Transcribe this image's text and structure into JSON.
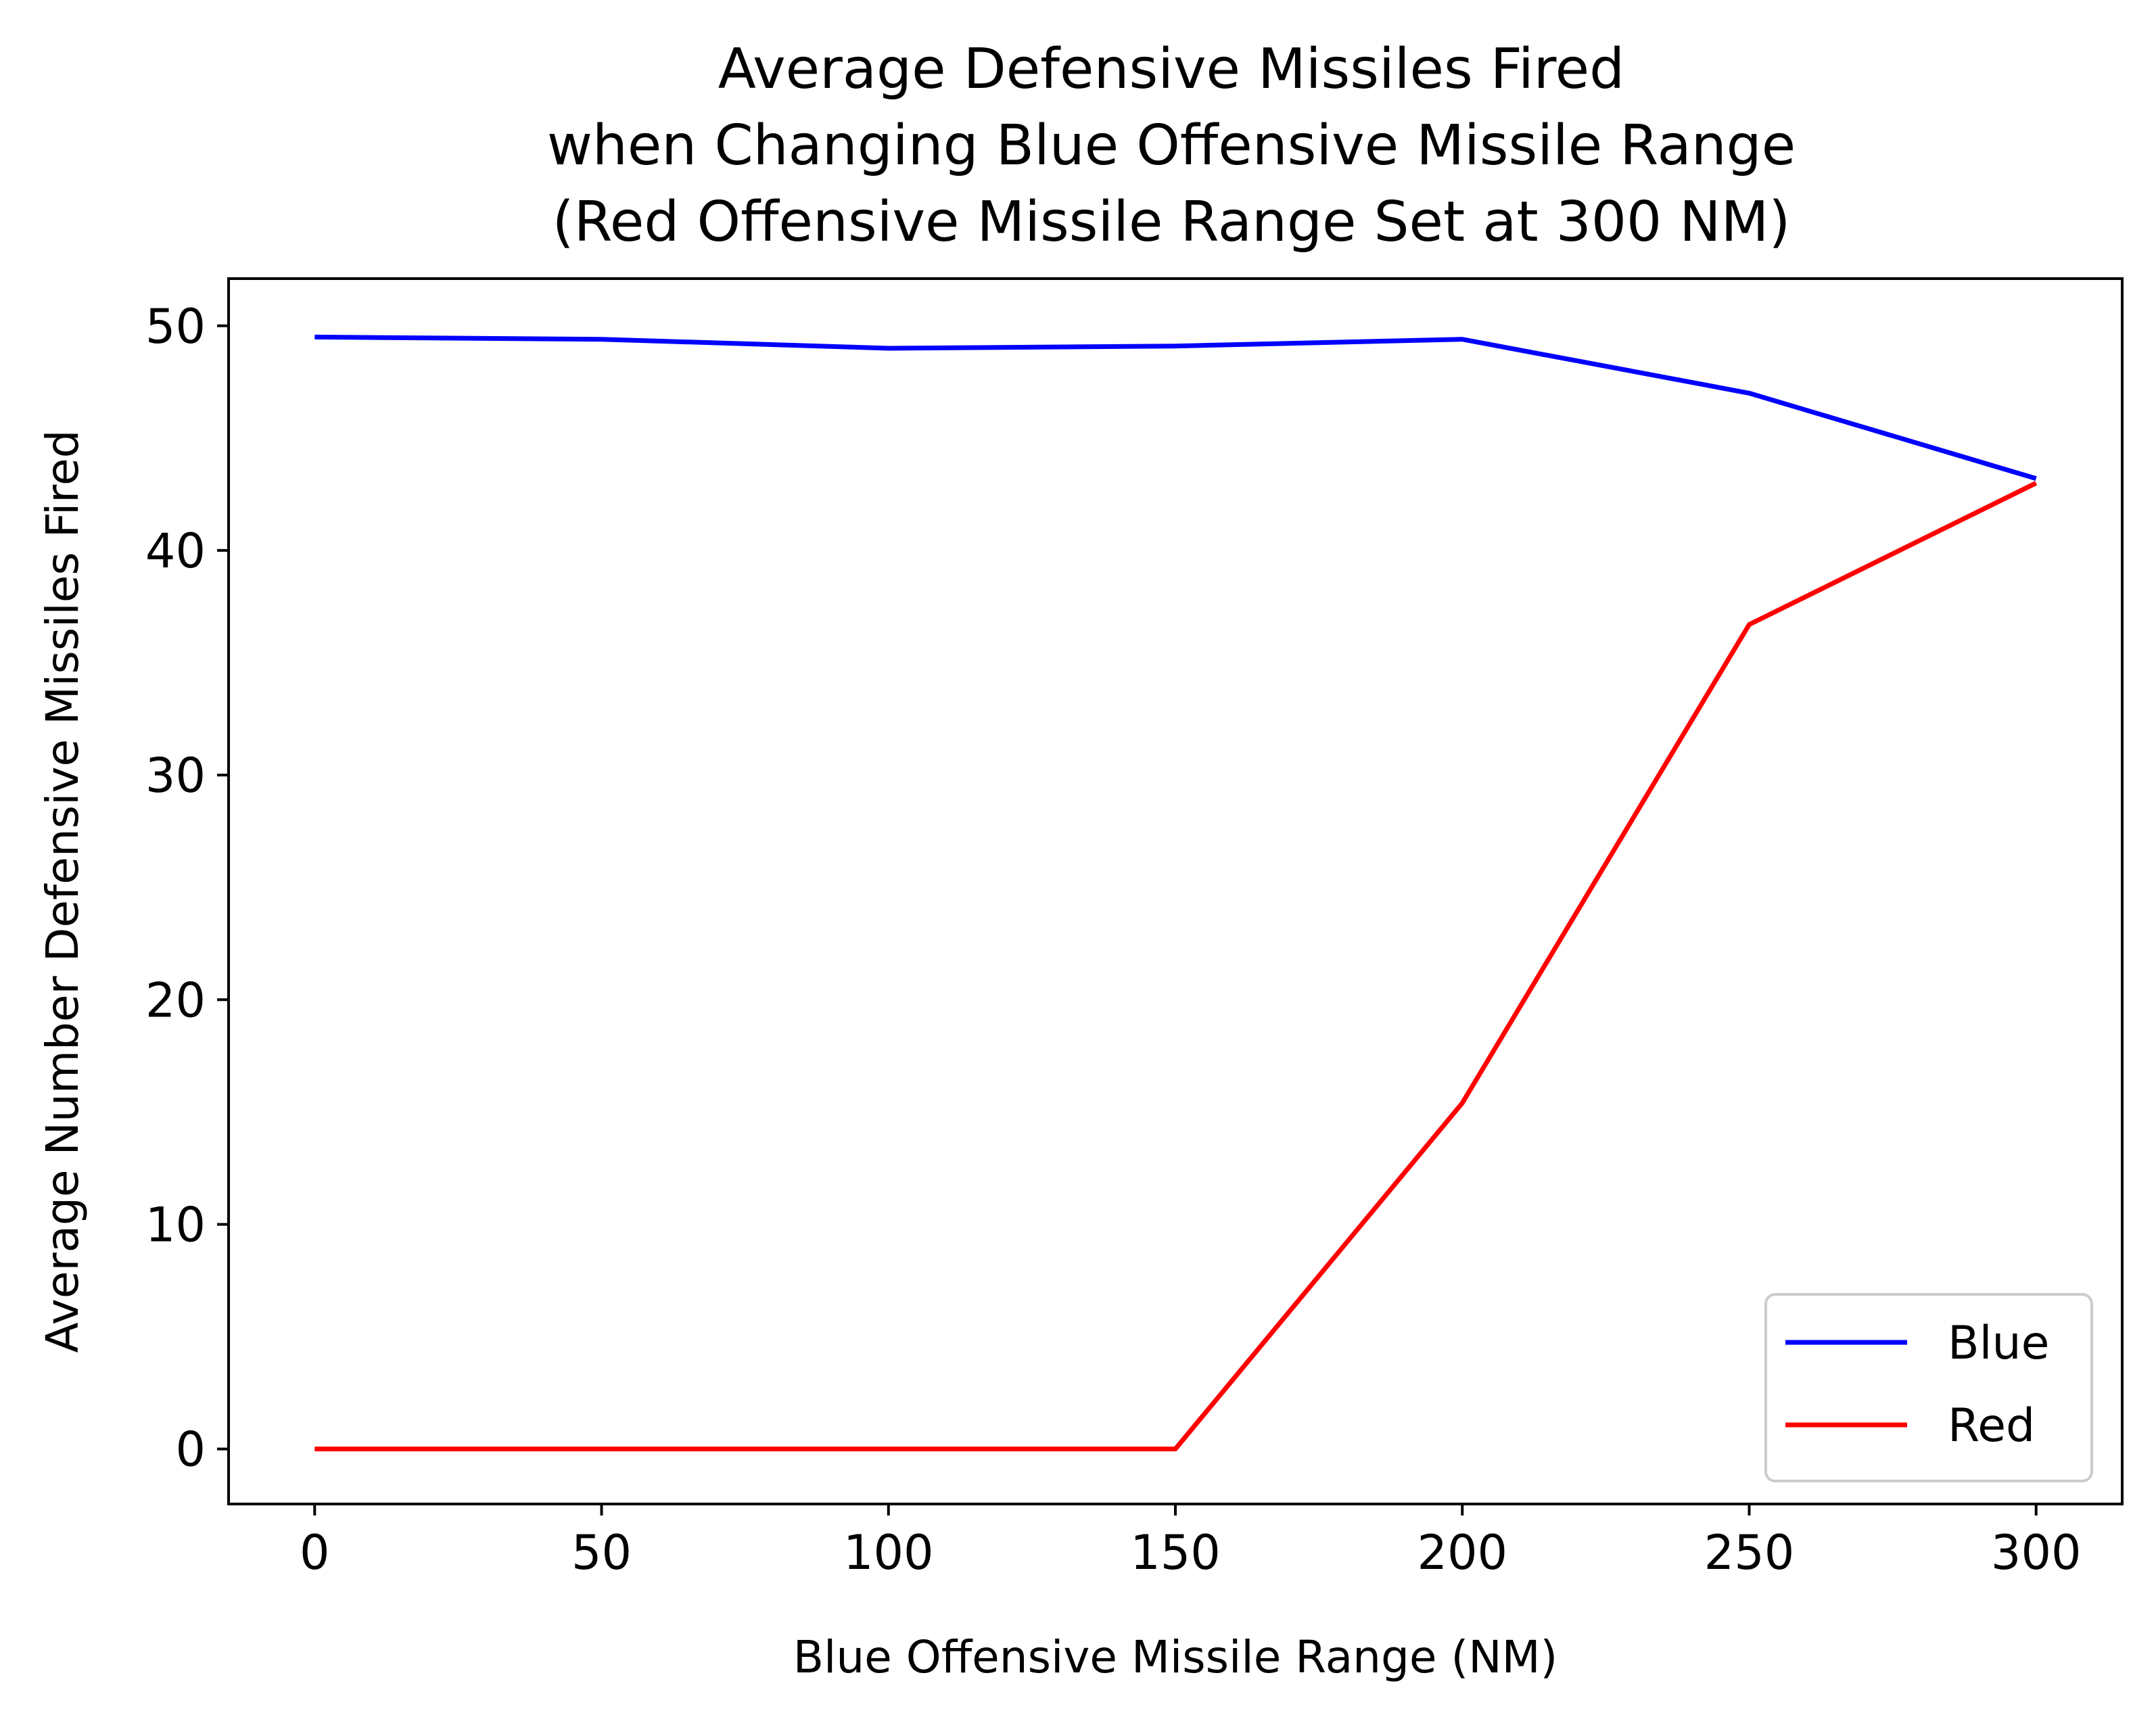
{
  "chart_data": {
    "type": "line",
    "title_lines": [
      "Average Defensive Missiles Fired",
      "when Changing Blue Offensive Missile Range",
      "(Red Offensive Missile Range Set at 300 NM)"
    ],
    "xlabel": "Blue Offensive Missile Range (NM)",
    "ylabel": "Average Number Defensive Missiles Fired",
    "x": [
      0,
      50,
      100,
      150,
      200,
      250,
      300
    ],
    "xlim": [
      -15,
      315
    ],
    "ylim": [
      -2.45,
      52.1
    ],
    "xticks": [
      0,
      50,
      100,
      150,
      200,
      250,
      300
    ],
    "yticks": [
      0,
      10,
      20,
      30,
      40,
      50
    ],
    "grid": false,
    "legend_position": "lower-right",
    "series": [
      {
        "name": "Blue",
        "color": "#0000ff",
        "values": [
          49.5,
          49.4,
          49.0,
          49.1,
          49.4,
          47.0,
          43.2
        ]
      },
      {
        "name": "Red",
        "color": "#ff0000",
        "values": [
          0,
          0,
          0,
          0,
          15.4,
          36.7,
          43.0
        ]
      }
    ]
  }
}
